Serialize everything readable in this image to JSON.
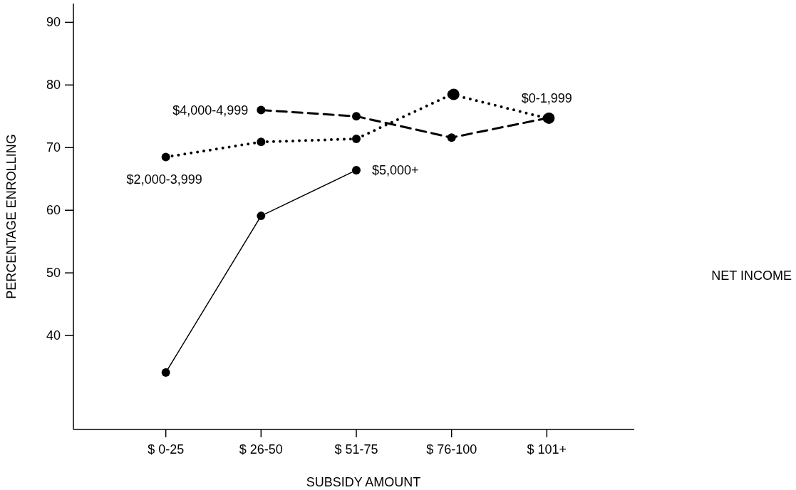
{
  "chart_data": {
    "type": "line",
    "xlabel": "SUBSIDY AMOUNT",
    "ylabel": "PERCENTAGE ENROLLING",
    "legend_title": "NET INCOME",
    "categories": [
      "$ 0-25",
      "$ 26-50",
      "$ 51-75",
      "$ 76-100",
      "$ 101+"
    ],
    "ylim": [
      25,
      93
    ],
    "yticks": [
      40,
      50,
      60,
      70,
      80,
      90
    ],
    "marker": "circle",
    "series": [
      {
        "name": "$5,000+",
        "color": "#000000",
        "line_style": "solid",
        "values": [
          34.1,
          59.1,
          66.4,
          null,
          null
        ]
      },
      {
        "name": "$2,000-3,999",
        "color": "#000000",
        "line_style": "dotted",
        "values": [
          68.5,
          70.9,
          71.4,
          78.5,
          null
        ]
      },
      {
        "name": "$4,000-4,999",
        "color": "#000000",
        "line_style": "dashed",
        "values": [
          null,
          76.0,
          75.0,
          71.6,
          74.7
        ]
      },
      {
        "name": "$0-1,999",
        "color": "#000000",
        "line_style": "dotted",
        "values": [
          null,
          null,
          null,
          78.5,
          74.7
        ]
      }
    ]
  }
}
